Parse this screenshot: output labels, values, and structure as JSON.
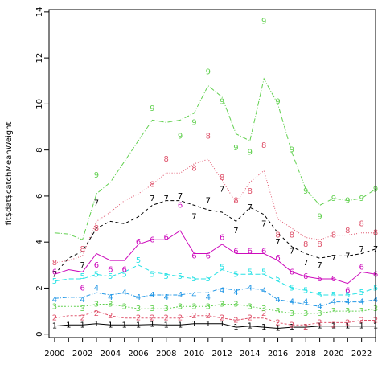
{
  "chart_data": {
    "type": "line",
    "title": "",
    "xlabel": "",
    "ylabel": "fit$dat$catchMeanWeight",
    "xlim": [
      1999.6,
      2023
    ],
    "ylim": [
      -0.15,
      14.1
    ],
    "xticks": [
      "2000",
      "2002",
      "2004",
      "2006",
      "2008",
      "2010",
      "2012",
      "2014",
      "2016",
      "2018",
      "2020",
      "2022"
    ],
    "yticks": [
      "0",
      "2",
      "4",
      "6",
      "8",
      "10",
      "12",
      "14"
    ],
    "x": [
      2000,
      2001,
      2002,
      2003,
      2004,
      2005,
      2006,
      2007,
      2008,
      2009,
      2010,
      2011,
      2012,
      2013,
      2014,
      2015,
      2016,
      2017,
      2018,
      2019,
      2020,
      2021,
      2022,
      2023
    ],
    "series": [
      {
        "marker": "1",
        "color": "#000000",
        "dash": "",
        "points": [
          0.35,
          0.4,
          0.4,
          0.45,
          0.4,
          0.4,
          0.4,
          0.42,
          0.4,
          0.4,
          0.45,
          0.45,
          0.45,
          0.3,
          0.35,
          0.3,
          0.25,
          0.3,
          0.3,
          0.35,
          0.35,
          0.35,
          0.35,
          0.35
        ],
        "line": [
          0.35,
          0.4,
          0.4,
          0.45,
          0.4,
          0.4,
          0.4,
          0.42,
          0.4,
          0.4,
          0.45,
          0.45,
          0.45,
          0.3,
          0.35,
          0.3,
          0.25,
          0.3,
          0.3,
          0.35,
          0.35,
          0.35,
          0.35,
          0.35
        ]
      },
      {
        "marker": "2",
        "color": "#df536b",
        "dash": "3,2",
        "points": [
          1.3,
          1.4,
          1.6,
          2.0,
          1.8,
          1.6,
          1.6,
          1.6,
          1.5,
          1.5,
          1.6,
          1.7,
          1.6,
          1.4,
          1.7,
          1.8,
          1.3,
          1.1,
          0.9,
          1.1,
          1.0,
          0.9,
          1.4,
          1.3
        ],
        "line": [
          0.7,
          0.8,
          0.8,
          1.0,
          0.8,
          0.7,
          0.7,
          0.7,
          0.7,
          0.7,
          0.8,
          0.8,
          0.7,
          0.6,
          0.7,
          0.7,
          0.5,
          0.4,
          0.4,
          0.5,
          0.5,
          0.5,
          0.6,
          0.6
        ],
        "labels": [
          0.7,
          null,
          0.7,
          0.9,
          0.8,
          null,
          0.7,
          0.7,
          0.7,
          0.7,
          0.8,
          0.8,
          0.7,
          0.6,
          0.7,
          0.9,
          0.5,
          0.4,
          0.3,
          0.5,
          0.4,
          0.5,
          0.6,
          0.6
        ]
      },
      {
        "marker": "3",
        "color": "#61d04f",
        "dash": "2,2",
        "points": [
          1.2,
          1.2,
          1.2,
          1.4,
          1.3,
          1.2,
          1.1,
          1.1,
          1.1,
          1.2,
          1.2,
          1.2,
          1.3,
          1.3,
          1.2,
          1.1,
          1.1,
          0.9,
          0.9,
          0.9,
          1.0,
          1.0,
          1.0,
          1.1
        ],
        "line": [
          1.2,
          1.2,
          1.2,
          1.3,
          1.3,
          1.2,
          1.1,
          1.1,
          1.1,
          1.2,
          1.2,
          1.2,
          1.3,
          1.3,
          1.2,
          1.1,
          1.0,
          0.9,
          0.9,
          0.9,
          1.0,
          1.0,
          1.0,
          1.1
        ],
        "labels": [
          1.2,
          null,
          1.1,
          1.3,
          1.3,
          1.2,
          1.1,
          1.1,
          1.1,
          1.2,
          1.2,
          1.2,
          1.3,
          1.3,
          1.2,
          1.1,
          1.0,
          0.9,
          0.9,
          0.9,
          1.0,
          1.0,
          1.0,
          1.1
        ]
      },
      {
        "marker": "4",
        "color": "#2297e6",
        "dash": "5,2,1,2",
        "points": [
          1.55,
          1.6,
          1.6,
          1.8,
          1.7,
          1.8,
          1.6,
          1.7,
          1.7,
          1.7,
          1.8,
          1.8,
          2.0,
          1.9,
          2.0,
          1.9,
          1.5,
          1.4,
          1.3,
          1.2,
          1.4,
          1.4,
          1.4,
          1.5
        ],
        "line": [
          1.55,
          1.6,
          1.6,
          1.8,
          1.7,
          1.8,
          1.6,
          1.7,
          1.7,
          1.7,
          1.8,
          1.8,
          2.0,
          1.9,
          2.0,
          1.9,
          1.5,
          1.4,
          1.3,
          1.2,
          1.4,
          1.4,
          1.4,
          1.5
        ],
        "labels": [
          1.5,
          null,
          1.5,
          2.0,
          1.6,
          1.8,
          1.6,
          1.7,
          1.6,
          1.7,
          1.7,
          1.6,
          1.9,
          1.8,
          2.0,
          1.9,
          1.5,
          1.4,
          1.4,
          1.2,
          1.4,
          1.4,
          1.4,
          1.5
        ]
      },
      {
        "marker": "5",
        "color": "#28e2e5",
        "dash": "6,3",
        "points": [
          2.3,
          2.4,
          2.4,
          2.6,
          2.5,
          2.7,
          3.0,
          2.7,
          2.6,
          2.5,
          2.4,
          2.4,
          2.8,
          2.6,
          2.6,
          2.6,
          2.3,
          2.0,
          1.9,
          1.7,
          1.7,
          1.7,
          1.8,
          2.0
        ],
        "line": [
          2.3,
          2.4,
          2.4,
          2.6,
          2.5,
          2.7,
          3.0,
          2.7,
          2.6,
          2.5,
          2.4,
          2.4,
          2.8,
          2.6,
          2.6,
          2.6,
          2.3,
          2.0,
          1.9,
          1.7,
          1.7,
          1.7,
          1.8,
          2.0
        ],
        "labels": [
          2.3,
          null,
          2.5,
          2.6,
          2.5,
          2.6,
          3.2,
          2.6,
          2.5,
          2.5,
          2.4,
          2.4,
          2.9,
          2.6,
          2.7,
          2.7,
          2.4,
          2.0,
          1.9,
          1.7,
          1.7,
          1.7,
          1.8,
          2.0
        ]
      },
      {
        "marker": "6",
        "color": "#cd0bbc",
        "dash": "",
        "points": [
          2.6,
          2.8,
          2.7,
          3.5,
          3.2,
          3.2,
          3.9,
          4.1,
          4.1,
          4.5,
          3.5,
          3.5,
          3.9,
          3.5,
          3.5,
          3.5,
          3.2,
          2.7,
          2.5,
          2.4,
          2.4,
          2.2,
          2.7,
          2.6
        ],
        "line": [
          2.6,
          2.8,
          2.7,
          3.5,
          3.2,
          3.2,
          3.9,
          4.1,
          4.1,
          4.5,
          3.5,
          3.5,
          3.9,
          3.5,
          3.5,
          3.5,
          3.2,
          2.7,
          2.5,
          2.4,
          2.4,
          2.2,
          2.7,
          2.6
        ],
        "labels": [
          2.7,
          null,
          2.0,
          3.0,
          2.8,
          2.8,
          4.0,
          4.1,
          4.2,
          5.6,
          3.4,
          3.4,
          4.2,
          3.6,
          3.6,
          3.6,
          3.3,
          2.7,
          2.5,
          2.4,
          2.4,
          1.9,
          2.9,
          2.6
        ]
      },
      {
        "marker": "7",
        "color": "#000000",
        "dash": "4,3",
        "points": [
          2.6,
          3.3,
          3.6,
          4.6,
          4.9,
          4.8,
          5.1,
          5.6,
          5.8,
          5.8,
          5.6,
          5.4,
          5.3,
          4.9,
          5.5,
          5.2,
          4.4,
          3.8,
          3.5,
          3.3,
          3.4,
          3.4,
          3.5,
          3.7
        ],
        "line": [
          2.6,
          3.3,
          3.6,
          4.6,
          4.9,
          4.8,
          5.1,
          5.6,
          5.8,
          5.8,
          5.6,
          5.4,
          5.3,
          4.9,
          5.5,
          5.2,
          4.4,
          3.8,
          3.5,
          3.3,
          3.4,
          3.4,
          3.5,
          3.7
        ],
        "labels": [
          2.6,
          null,
          3.0,
          5.7,
          null,
          null,
          null,
          5.9,
          5.9,
          6.0,
          5.1,
          5.8,
          6.3,
          4.5,
          5.5,
          4.8,
          4.0,
          3.6,
          3.1,
          3.0,
          3.3,
          3.4,
          3.7,
          3.7
        ]
      },
      {
        "marker": "8",
        "color": "#df536b",
        "dash": "1,2",
        "points": [
          3.1,
          3.2,
          3.4,
          4.9,
          5.3,
          5.8,
          6.1,
          6.5,
          7.0,
          7.0,
          7.4,
          7.6,
          6.7,
          5.7,
          6.6,
          7.1,
          5.0,
          4.6,
          4.2,
          4.1,
          4.3,
          4.3,
          4.4,
          4.4
        ],
        "line": [
          3.1,
          3.2,
          3.4,
          4.9,
          5.3,
          5.8,
          6.1,
          6.5,
          7.0,
          7.0,
          7.4,
          7.6,
          6.7,
          5.7,
          6.6,
          7.1,
          5.0,
          4.6,
          4.2,
          4.1,
          4.3,
          4.3,
          4.4,
          4.4
        ],
        "labels": [
          3.1,
          null,
          3.7,
          4.6,
          null,
          null,
          null,
          6.5,
          7.6,
          null,
          7.2,
          8.6,
          6.8,
          5.8,
          6.2,
          8.2,
          4.3,
          4.3,
          3.9,
          3.9,
          4.3,
          4.5,
          4.8,
          4.4
        ]
      },
      {
        "marker": "9",
        "color": "#61d04f",
        "dash": "6,2,1,2",
        "points": [
          4.4,
          4.35,
          4.1,
          6.3,
          6.6,
          7.5,
          8.4,
          9.3,
          9.2,
          9.3,
          9.6,
          10.8,
          10.3,
          8.7,
          8.4,
          11.1,
          10.0,
          7.9,
          6.3,
          5.6,
          5.9,
          5.8,
          5.9,
          6.3
        ],
        "line": [
          4.4,
          4.35,
          4.1,
          6.1,
          6.6,
          7.5,
          8.4,
          9.3,
          9.2,
          9.3,
          9.6,
          10.8,
          10.3,
          8.7,
          8.4,
          11.1,
          10.0,
          7.9,
          6.3,
          5.6,
          5.9,
          5.8,
          5.9,
          6.3
        ],
        "labels": [
          null,
          null,
          null,
          6.9,
          null,
          null,
          null,
          9.8,
          null,
          8.6,
          9.2,
          11.4,
          10.1,
          8.1,
          7.9,
          13.6,
          10.1,
          8.0,
          6.2,
          5.1,
          5.9,
          5.8,
          5.9,
          6.3
        ]
      }
    ]
  }
}
